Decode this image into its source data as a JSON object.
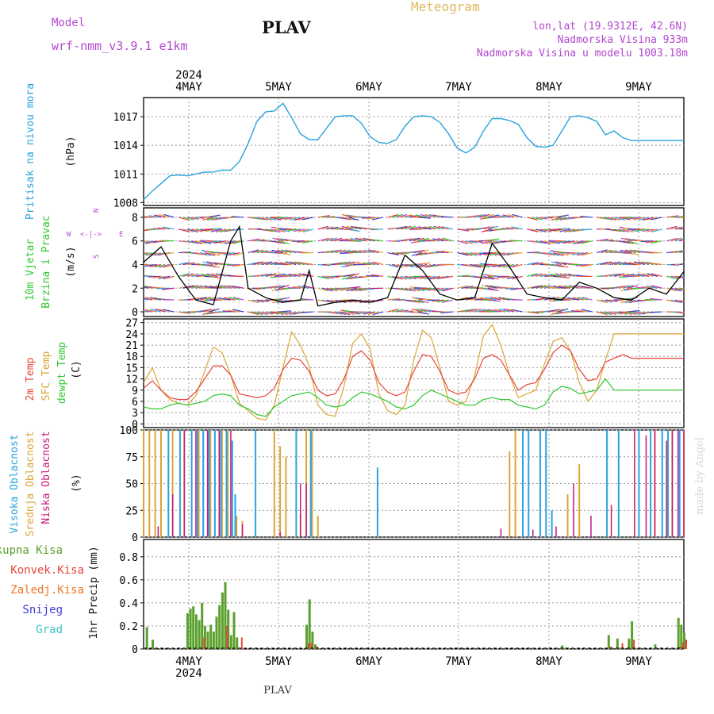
{
  "header": {
    "model_label": "Model",
    "model_name": "wrf-nmm_v3.9.1 e1km",
    "station": "PLAV",
    "meteogram": "Meteogram",
    "coords": "lon,lat (19.9312E, 42.6N)",
    "elevation": "Nadmorska Visina 933m",
    "model_elevation": "Nadmorska Visina u modelu 1003.18m"
  },
  "footer": {
    "station": "PLAV",
    "watermark": "made by Angel"
  },
  "colors": {
    "pressure": "#29a3e0",
    "temp": "#e8453a",
    "sfc_temp": "#dba636",
    "dewpt": "#2ec92e",
    "high_cloud": "#29a3e0",
    "mid_cloud": "#dba636",
    "low_cloud": "#c8177f",
    "precip_total": "#5aa02c",
    "precip_conv": "#e8453a",
    "precip_ice": "#ee7722",
    "snow": "#3a3ad8",
    "hail": "#3ac8c8",
    "purple_text": "#b347d1",
    "orange_text": "#e0b860"
  },
  "axes": {
    "top_year": "2024",
    "bottom_year": "2024",
    "days": [
      "4MAY",
      "5MAY",
      "6MAY",
      "7MAY",
      "8MAY",
      "9MAY"
    ]
  },
  "chart_data": [
    {
      "type": "line",
      "title": "Pritisak na nivou mora",
      "ylabel": "(hPa)",
      "ylim": [
        1007.7,
        1019
      ],
      "yticks": [
        "1008",
        "1011",
        "1014",
        "1017"
      ],
      "x_unit": "hours from 2024-05-03 12:00",
      "series": [
        {
          "x": [
            0,
            3,
            6,
            9,
            12,
            15,
            18,
            21,
            24,
            27,
            30,
            33,
            36,
            39,
            42,
            45,
            48,
            51,
            54,
            57,
            60,
            63,
            66,
            69,
            72,
            75,
            78,
            81,
            84,
            87,
            90,
            93,
            96,
            99,
            102,
            105,
            108,
            111,
            114,
            117,
            120,
            123,
            126,
            129,
            132,
            135,
            138,
            141,
            144,
            147,
            150,
            153,
            156,
            159,
            162,
            165,
            168,
            171,
            174,
            177,
            180,
            183,
            186
          ],
          "values": [
            1008.3,
            1009.2,
            1010.0,
            1010.8,
            1010.9,
            1010.8,
            1011.0,
            1011.2,
            1011.2,
            1011.4,
            1011.4,
            1012.3,
            1014.2,
            1016.5,
            1017.5,
            1017.6,
            1018.4,
            1016.9,
            1015.2,
            1014.6,
            1014.6,
            1015.8,
            1017.0,
            1017.1,
            1017.1,
            1016.3,
            1014.9,
            1014.3,
            1014.2,
            1014.6,
            1016.0,
            1017.0,
            1017.1,
            1017.0,
            1016.4,
            1015.2,
            1013.7,
            1013.2,
            1013.8,
            1015.5,
            1016.8,
            1016.8,
            1016.6,
            1016.2,
            1014.8,
            1013.9,
            1013.8,
            1014.0,
            1015.5,
            1017.0,
            1017.1,
            1016.9,
            1016.5,
            1015.1,
            1015.5,
            1014.8,
            1014.5,
            1014.5,
            1014.5,
            1014.5,
            1014.5,
            1014.5,
            1014.5
          ]
        }
      ]
    },
    {
      "type": "line",
      "title": "10m Vjetar Brzina i Pravac",
      "ylabel": "(m/s)",
      "ylim": [
        -0.4,
        8.8
      ],
      "yticks": [
        "0",
        "2",
        "4",
        "6",
        "8"
      ],
      "compass": [
        "N",
        "E",
        "S",
        "W"
      ],
      "series": [
        {
          "name": "speed",
          "x": [
            0,
            6,
            12,
            18,
            24,
            30,
            33,
            36,
            42,
            48,
            54,
            57,
            60,
            66,
            72,
            78,
            84,
            90,
            96,
            102,
            108,
            114,
            120,
            126,
            132,
            138,
            144,
            150,
            156,
            162,
            168,
            174,
            180,
            186
          ],
          "values": [
            4.2,
            5.5,
            3.0,
            1.0,
            0.6,
            6.0,
            7.2,
            2.0,
            1.2,
            0.8,
            1.0,
            3.5,
            0.5,
            0.8,
            1.0,
            0.8,
            1.2,
            4.8,
            3.5,
            1.5,
            1.0,
            1.2,
            5.8,
            3.8,
            1.5,
            1.2,
            1.0,
            2.5,
            2.0,
            1.2,
            1.0,
            2.0,
            1.5,
            3.4
          ]
        }
      ]
    },
    {
      "type": "line",
      "labels": [
        "2m Temp",
        "SFC Temp",
        "dewpt Temp"
      ],
      "ylabel": "(C)",
      "ylim": [
        -1,
        28
      ],
      "yticks": [
        "0",
        "3",
        "6",
        "9",
        "12",
        "15",
        "18",
        "21",
        "24",
        "27"
      ],
      "series": [
        {
          "name": "2m Temp",
          "x": [
            0,
            3,
            6,
            9,
            12,
            15,
            18,
            21,
            24,
            27,
            30,
            33,
            36,
            39,
            42,
            45,
            48,
            51,
            54,
            57,
            60,
            63,
            66,
            69,
            72,
            75,
            78,
            81,
            84,
            87,
            90,
            93,
            96,
            99,
            102,
            105,
            108,
            111,
            114,
            117,
            120,
            123,
            126,
            129,
            132,
            135,
            138,
            141,
            144,
            147,
            150,
            153,
            156,
            159,
            162,
            165,
            168,
            171,
            174,
            177,
            180,
            183,
            186
          ],
          "values": [
            9.5,
            11.5,
            9.0,
            7.0,
            6.5,
            6.5,
            8.5,
            12.0,
            15.5,
            15.5,
            13.0,
            8.0,
            7.5,
            7.0,
            7.5,
            9.5,
            14.5,
            17.5,
            17.0,
            14.0,
            9.0,
            7.5,
            8.0,
            12.0,
            18.0,
            19.5,
            17.0,
            11.0,
            8.5,
            7.5,
            8.5,
            14.0,
            18.5,
            18.0,
            14.0,
            9.0,
            8.0,
            8.5,
            12.0,
            17.5,
            18.5,
            17.0,
            13.0,
            9.0,
            10.5,
            11.0,
            14.5,
            19.0,
            21.0,
            19.5,
            14.5,
            11.5,
            12.0,
            16.5,
            17.5,
            18.5,
            17.5,
            17.5,
            17.5,
            17.5,
            17.5,
            17.5,
            17.5
          ]
        },
        {
          "name": "SFC Temp",
          "x": [
            0,
            3,
            6,
            9,
            12,
            15,
            18,
            21,
            24,
            27,
            30,
            33,
            36,
            39,
            42,
            45,
            48,
            51,
            54,
            57,
            60,
            63,
            66,
            69,
            72,
            75,
            78,
            81,
            84,
            87,
            90,
            93,
            96,
            99,
            102,
            105,
            108,
            111,
            114,
            117,
            120,
            123,
            126,
            129,
            132,
            135,
            138,
            141,
            144,
            147,
            150,
            153,
            156,
            159,
            162,
            165,
            168,
            171,
            174,
            177,
            180,
            183,
            186
          ],
          "values": [
            11.0,
            15.0,
            9.0,
            6.5,
            5.5,
            5.0,
            7.5,
            14.0,
            20.5,
            19.0,
            13.0,
            5.5,
            3.5,
            1.5,
            1.0,
            5.0,
            15.0,
            24.5,
            21.0,
            15.5,
            5.0,
            2.5,
            2.0,
            10.0,
            21.5,
            24.0,
            20.0,
            8.0,
            3.5,
            2.5,
            5.0,
            17.0,
            25.0,
            23.0,
            15.0,
            6.0,
            5.0,
            6.0,
            13.0,
            23.5,
            26.5,
            21.0,
            13.0,
            7.0,
            8.0,
            9.0,
            16.0,
            22.0,
            23.0,
            19.5,
            11.0,
            6.0,
            9.0,
            17.0,
            24.0,
            24.0,
            24.0,
            24.0,
            24.0,
            24.0,
            24.0,
            24.0,
            24.0
          ]
        },
        {
          "name": "dewpt Temp",
          "x": [
            0,
            3,
            6,
            9,
            12,
            15,
            18,
            21,
            24,
            27,
            30,
            33,
            36,
            39,
            42,
            45,
            48,
            51,
            54,
            57,
            60,
            63,
            66,
            69,
            72,
            75,
            78,
            81,
            84,
            87,
            90,
            93,
            96,
            99,
            102,
            105,
            108,
            111,
            114,
            117,
            120,
            123,
            126,
            129,
            132,
            135,
            138,
            141,
            144,
            147,
            150,
            153,
            156,
            159,
            162,
            165,
            168,
            171,
            174,
            177,
            180,
            183,
            186
          ],
          "values": [
            4.5,
            4.0,
            4.0,
            5.0,
            5.5,
            5.0,
            5.5,
            6.0,
            7.5,
            8.0,
            7.5,
            5.0,
            4.0,
            2.5,
            2.0,
            4.5,
            6.0,
            7.5,
            8.0,
            8.5,
            7.0,
            5.0,
            4.5,
            5.0,
            7.0,
            8.5,
            8.0,
            7.0,
            6.0,
            4.5,
            4.0,
            5.0,
            7.5,
            9.0,
            8.0,
            7.0,
            6.0,
            5.0,
            5.0,
            6.5,
            7.0,
            6.5,
            6.5,
            5.0,
            4.5,
            4.0,
            5.0,
            8.5,
            10.0,
            9.5,
            8.0,
            8.5,
            9.0,
            12.0,
            9.0,
            9.0,
            9.0,
            9.0,
            9.0,
            9.0,
            9.0,
            9.0,
            9.0
          ]
        }
      ]
    },
    {
      "type": "bar",
      "labels": [
        "Visoka Oblacnost",
        "Srednja Oblacnost",
        "Niska Oblacnost"
      ],
      "ylabel": "(%)",
      "ylim": [
        0,
        100
      ],
      "yticks": [
        "0",
        "25",
        "50",
        "75",
        "100"
      ],
      "series": [
        {
          "name": "Visoka Oblacnost",
          "x": [
            8,
            12,
            16,
            18,
            20,
            22,
            24,
            26,
            28,
            30,
            31,
            38,
            52,
            57,
            80,
            130,
            132,
            136,
            138,
            140,
            159,
            163,
            170,
            174,
            178,
            180,
            184
          ],
          "values": [
            100,
            100,
            100,
            100,
            100,
            100,
            100,
            100,
            100,
            90,
            40,
            100,
            100,
            100,
            65,
            100,
            100,
            100,
            100,
            25,
            100,
            100,
            100,
            100,
            100,
            100,
            100
          ]
        },
        {
          "name": "Srednja Oblacnost",
          "x": [
            0,
            2,
            4,
            6,
            10,
            14,
            19,
            23,
            27,
            29,
            32,
            34,
            45,
            47,
            49,
            54,
            56,
            58,
            60,
            126,
            128,
            146,
            150,
            176,
            182,
            186
          ],
          "values": [
            100,
            100,
            100,
            100,
            100,
            100,
            100,
            100,
            100,
            100,
            20,
            15,
            100,
            85,
            75,
            22,
            100,
            100,
            20,
            80,
            100,
            40,
            68,
            100,
            100,
            100
          ]
        },
        {
          "name": "Niska Oblacnost",
          "x": [
            4,
            9,
            13,
            17,
            21,
            25,
            29,
            33,
            46,
            53,
            55,
            122,
            133,
            141,
            147,
            153,
            160,
            168,
            172,
            175,
            179,
            181,
            183,
            185
          ],
          "values": [
            10,
            40,
            100,
            100,
            100,
            100,
            100,
            12,
            5,
            50,
            50,
            8,
            7,
            10,
            50,
            20,
            30,
            100,
            95,
            100,
            90,
            100,
            100,
            100
          ]
        }
      ]
    },
    {
      "type": "bar",
      "labels": [
        "Ukupna Kisa",
        "Konvek.Kisa",
        "Zaledj.Kisa",
        "Snijeg",
        "Grad"
      ],
      "ylabel": "1hr Precip (mm)",
      "ylim": [
        0,
        0.95
      ],
      "yticks": [
        "0",
        "0.2",
        "0.4",
        "0.6",
        "0.8"
      ],
      "series": [
        {
          "name": "Ukupna Kisa",
          "x": [
            1,
            3,
            15,
            16,
            17,
            18,
            19,
            20,
            21,
            22,
            23,
            24,
            25,
            26,
            27,
            28,
            29,
            30,
            31,
            32,
            56,
            57,
            58,
            59,
            144,
            145,
            160,
            163,
            164,
            167,
            168,
            176,
            184,
            185,
            186
          ],
          "values": [
            0.19,
            0.08,
            0.31,
            0.35,
            0.37,
            0.3,
            0.25,
            0.4,
            0.2,
            0.15,
            0.21,
            0.15,
            0.28,
            0.38,
            0.49,
            0.58,
            0.34,
            0.12,
            0.32,
            0.1,
            0.21,
            0.43,
            0.15,
            0.04,
            0.03,
            0.01,
            0.12,
            0.09,
            0.01,
            0.09,
            0.24,
            0.04,
            0.27,
            0.21,
            0.14
          ]
        },
        {
          "name": "Konvek.Kisa",
          "x": [
            2,
            20,
            28,
            33,
            56,
            57,
            59,
            160,
            164,
            168,
            184,
            185,
            186
          ],
          "values": [
            0.01,
            0.1,
            0.2,
            0.1,
            0.05,
            0.05,
            0.02,
            0.02,
            0.05,
            0.08,
            0.02,
            0.06,
            0.08
          ]
        }
      ]
    }
  ]
}
